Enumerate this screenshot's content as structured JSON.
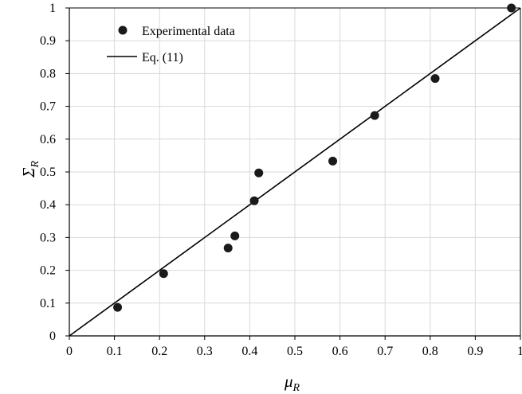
{
  "chart_data": {
    "type": "scatter",
    "xlabel": "μR",
    "xlabel_main": "μ",
    "xlabel_sub": "R",
    "ylabel": "ΣR",
    "ylabel_main": "Σ",
    "ylabel_sub": "R",
    "xlim": [
      0,
      1
    ],
    "ylim": [
      0,
      1
    ],
    "x_ticks": [
      "0",
      "0.1",
      "0.2",
      "0.3",
      "0.4",
      "0.5",
      "0.6",
      "0.7",
      "0.8",
      "0.9",
      "1"
    ],
    "y_ticks": [
      "0",
      "0.1",
      "0.2",
      "0.3",
      "0.4",
      "0.5",
      "0.6",
      "0.7",
      "0.8",
      "0.9",
      "1"
    ],
    "grid": true,
    "legend_position": "top-left",
    "series": [
      {
        "name": "Experimental data",
        "kind": "scatter",
        "color": "#1a1a1a",
        "points": [
          {
            "x": 0.107,
            "y": 0.087
          },
          {
            "x": 0.209,
            "y": 0.19
          },
          {
            "x": 0.352,
            "y": 0.268
          },
          {
            "x": 0.367,
            "y": 0.305
          },
          {
            "x": 0.41,
            "y": 0.412
          },
          {
            "x": 0.42,
            "y": 0.497
          },
          {
            "x": 0.584,
            "y": 0.533
          },
          {
            "x": 0.677,
            "y": 0.672
          },
          {
            "x": 0.811,
            "y": 0.785
          },
          {
            "x": 0.98,
            "y": 1.0
          }
        ]
      },
      {
        "name": "Eq. (11)",
        "kind": "line",
        "color": "#000000",
        "points": [
          {
            "x": 0,
            "y": 0
          },
          {
            "x": 1,
            "y": 1
          }
        ]
      }
    ]
  }
}
